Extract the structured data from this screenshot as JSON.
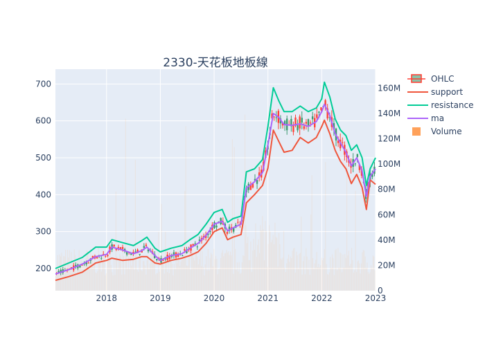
{
  "chart_data": {
    "type": "candlestick+line+bar",
    "title": "2330-天花板地板線",
    "x_ticks": [
      "2018",
      "2019",
      "2020",
      "2021",
      "2022",
      "2023"
    ],
    "x_range": [
      2017.05,
      2023.0
    ],
    "y_left": {
      "range": [
        140,
        740
      ],
      "ticks": [
        200,
        300,
        400,
        500,
        600,
        700
      ]
    },
    "y_right": {
      "range": [
        0,
        175
      ],
      "ticks": [
        0,
        20,
        40,
        60,
        80,
        100,
        120,
        140,
        160
      ],
      "tick_labels": [
        "0",
        "20M",
        "40M",
        "60M",
        "80M",
        "100M",
        "120M",
        "140M",
        "160M"
      ]
    },
    "legend": [
      {
        "name": "OHLC",
        "color": "#3D9970"
      },
      {
        "name": "support",
        "color": "#EF553B"
      },
      {
        "name": "resistance",
        "color": "#00CC96"
      },
      {
        "name": "ma",
        "color": "#AB63FA"
      },
      {
        "name": "Volume",
        "color": "#FFA15A"
      }
    ],
    "ma_points": [
      [
        2017.05,
        185
      ],
      [
        2017.3,
        197
      ],
      [
        2017.55,
        212
      ],
      [
        2017.8,
        232
      ],
      [
        2018.0,
        238
      ],
      [
        2018.1,
        258
      ],
      [
        2018.3,
        250
      ],
      [
        2018.5,
        240
      ],
      [
        2018.65,
        248
      ],
      [
        2018.75,
        258
      ],
      [
        2018.9,
        235
      ],
      [
        2019.0,
        222
      ],
      [
        2019.2,
        235
      ],
      [
        2019.4,
        240
      ],
      [
        2019.55,
        255
      ],
      [
        2019.7,
        268
      ],
      [
        2019.85,
        290
      ],
      [
        2020.0,
        320
      ],
      [
        2020.15,
        328
      ],
      [
        2020.25,
        302
      ],
      [
        2020.35,
        310
      ],
      [
        2020.5,
        320
      ],
      [
        2020.6,
        418
      ],
      [
        2020.75,
        435
      ],
      [
        2020.9,
        460
      ],
      [
        2021.0,
        535
      ],
      [
        2021.1,
        620
      ],
      [
        2021.2,
        610
      ],
      [
        2021.3,
        590
      ],
      [
        2021.45,
        588
      ],
      [
        2021.6,
        592
      ],
      [
        2021.75,
        585
      ],
      [
        2021.9,
        598
      ],
      [
        2022.0,
        625
      ],
      [
        2022.05,
        645
      ],
      [
        2022.15,
        615
      ],
      [
        2022.25,
        565
      ],
      [
        2022.35,
        540
      ],
      [
        2022.45,
        515
      ],
      [
        2022.55,
        478
      ],
      [
        2022.65,
        500
      ],
      [
        2022.75,
        465
      ],
      [
        2022.83,
        395
      ],
      [
        2022.9,
        450
      ],
      [
        2023.0,
        470
      ]
    ],
    "support_points": [
      [
        2017.05,
        168
      ],
      [
        2017.3,
        178
      ],
      [
        2017.55,
        190
      ],
      [
        2017.8,
        215
      ],
      [
        2018.0,
        222
      ],
      [
        2018.1,
        228
      ],
      [
        2018.3,
        222
      ],
      [
        2018.5,
        225
      ],
      [
        2018.65,
        232
      ],
      [
        2018.75,
        232
      ],
      [
        2018.9,
        215
      ],
      [
        2019.0,
        212
      ],
      [
        2019.2,
        222
      ],
      [
        2019.4,
        228
      ],
      [
        2019.55,
        235
      ],
      [
        2019.7,
        245
      ],
      [
        2019.85,
        268
      ],
      [
        2020.0,
        300
      ],
      [
        2020.15,
        310
      ],
      [
        2020.25,
        278
      ],
      [
        2020.35,
        285
      ],
      [
        2020.5,
        292
      ],
      [
        2020.6,
        378
      ],
      [
        2020.75,
        400
      ],
      [
        2020.9,
        425
      ],
      [
        2021.0,
        472
      ],
      [
        2021.1,
        575
      ],
      [
        2021.2,
        545
      ],
      [
        2021.3,
        515
      ],
      [
        2021.45,
        520
      ],
      [
        2021.6,
        555
      ],
      [
        2021.75,
        540
      ],
      [
        2021.9,
        555
      ],
      [
        2022.0,
        585
      ],
      [
        2022.05,
        602
      ],
      [
        2022.15,
        565
      ],
      [
        2022.25,
        520
      ],
      [
        2022.35,
        490
      ],
      [
        2022.45,
        470
      ],
      [
        2022.55,
        430
      ],
      [
        2022.65,
        455
      ],
      [
        2022.75,
        420
      ],
      [
        2022.83,
        360
      ],
      [
        2022.9,
        440
      ],
      [
        2023.0,
        428
      ]
    ],
    "resistance_points": [
      [
        2017.05,
        200
      ],
      [
        2017.3,
        215
      ],
      [
        2017.55,
        230
      ],
      [
        2017.8,
        258
      ],
      [
        2018.0,
        258
      ],
      [
        2018.1,
        278
      ],
      [
        2018.3,
        270
      ],
      [
        2018.5,
        262
      ],
      [
        2018.65,
        275
      ],
      [
        2018.75,
        285
      ],
      [
        2018.9,
        255
      ],
      [
        2019.0,
        245
      ],
      [
        2019.2,
        255
      ],
      [
        2019.4,
        262
      ],
      [
        2019.55,
        278
      ],
      [
        2019.7,
        292
      ],
      [
        2019.85,
        320
      ],
      [
        2020.0,
        352
      ],
      [
        2020.15,
        360
      ],
      [
        2020.25,
        325
      ],
      [
        2020.35,
        335
      ],
      [
        2020.5,
        342
      ],
      [
        2020.6,
        462
      ],
      [
        2020.75,
        470
      ],
      [
        2020.9,
        495
      ],
      [
        2021.0,
        585
      ],
      [
        2021.1,
        690
      ],
      [
        2021.2,
        655
      ],
      [
        2021.3,
        625
      ],
      [
        2021.45,
        625
      ],
      [
        2021.6,
        640
      ],
      [
        2021.75,
        625
      ],
      [
        2021.9,
        635
      ],
      [
        2022.0,
        660
      ],
      [
        2022.05,
        705
      ],
      [
        2022.15,
        665
      ],
      [
        2022.25,
        605
      ],
      [
        2022.35,
        575
      ],
      [
        2022.45,
        560
      ],
      [
        2022.55,
        520
      ],
      [
        2022.65,
        535
      ],
      [
        2022.75,
        500
      ],
      [
        2022.83,
        425
      ],
      [
        2022.9,
        470
      ],
      [
        2023.0,
        500
      ]
    ]
  }
}
